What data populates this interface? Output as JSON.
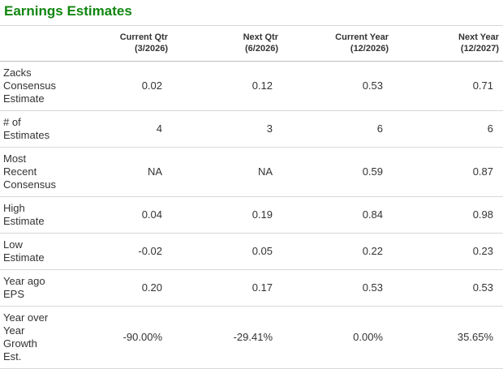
{
  "page": {
    "title": "Earnings Estimates"
  },
  "colors": {
    "title_green": "#108610",
    "body_text": "#333333",
    "header_border": "#bdbdbd",
    "row_border": "#d8d8d8"
  },
  "table": {
    "columns": [
      {
        "label": "Current Qtr",
        "period": "(3/2026)"
      },
      {
        "label": "Next Qtr",
        "period": "(6/2026)"
      },
      {
        "label": "Current Year",
        "period": "(12/2026)"
      },
      {
        "label": "Next Year",
        "period": "(12/2027)"
      }
    ],
    "rows": [
      {
        "label": "Zacks\nConsensus\nEstimate",
        "values": [
          "0.02",
          "0.12",
          "0.53",
          "0.71"
        ]
      },
      {
        "label": "# of\nEstimates",
        "values": [
          "4",
          "3",
          "6",
          "6"
        ]
      },
      {
        "label": "Most\nRecent\nConsensus",
        "values": [
          "NA",
          "NA",
          "0.59",
          "0.87"
        ]
      },
      {
        "label": "High\nEstimate",
        "values": [
          "0.04",
          "0.19",
          "0.84",
          "0.98"
        ]
      },
      {
        "label": "Low\nEstimate",
        "values": [
          "-0.02",
          "0.05",
          "0.22",
          "0.23"
        ]
      },
      {
        "label": "Year ago\nEPS",
        "values": [
          "0.20",
          "0.17",
          "0.53",
          "0.53"
        ]
      },
      {
        "label": "Year over\nYear\nGrowth\nEst.",
        "values": [
          "-90.00%",
          "-29.41%",
          "0.00%",
          "35.65%"
        ]
      }
    ]
  }
}
